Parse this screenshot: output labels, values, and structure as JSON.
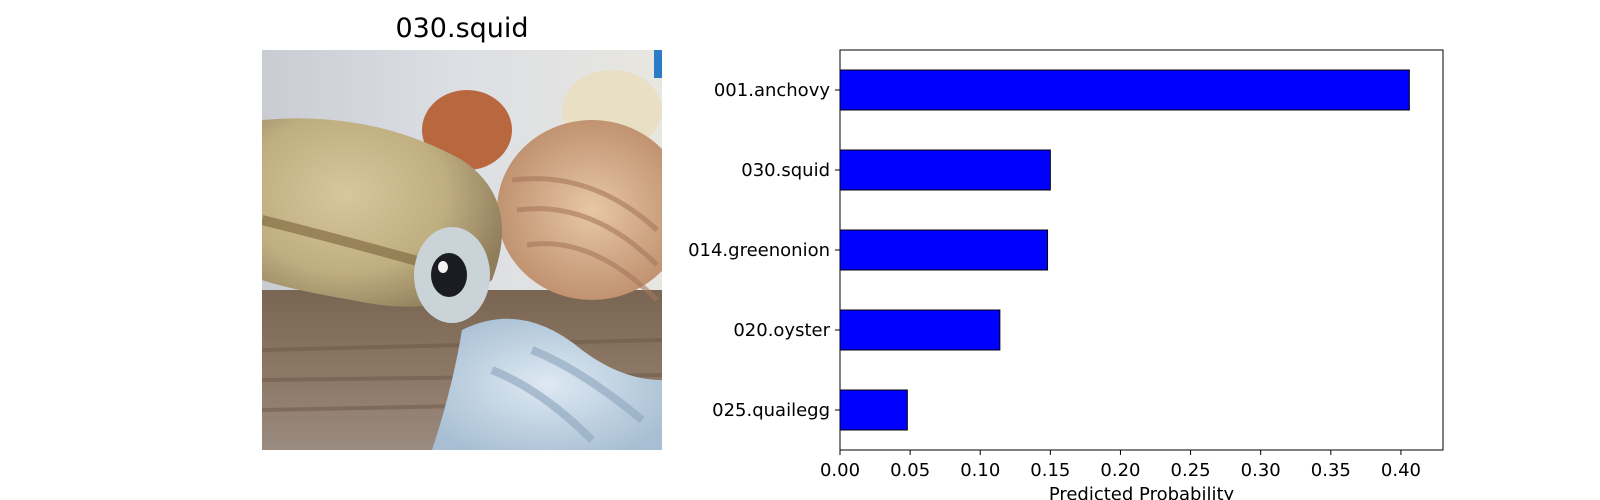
{
  "image_panel": {
    "title": "030.squid",
    "photo": "squid-photo"
  },
  "chart_data": {
    "type": "bar",
    "orientation": "horizontal",
    "categories": [
      "001.anchovy",
      "030.squid",
      "014.greenonion",
      "020.oyster",
      "025.quailegg"
    ],
    "values": [
      0.406,
      0.15,
      0.148,
      0.114,
      0.048
    ],
    "xlabel": "Predicted Probability",
    "ylabel": "",
    "xlim": [
      0,
      0.43
    ],
    "xticks": [
      "0.00",
      "0.05",
      "0.10",
      "0.15",
      "0.20",
      "0.25",
      "0.30",
      "0.35",
      "0.40"
    ],
    "bar_color": "#0000ff",
    "edge_color": "#000000",
    "grid": false,
    "legend": "none"
  }
}
